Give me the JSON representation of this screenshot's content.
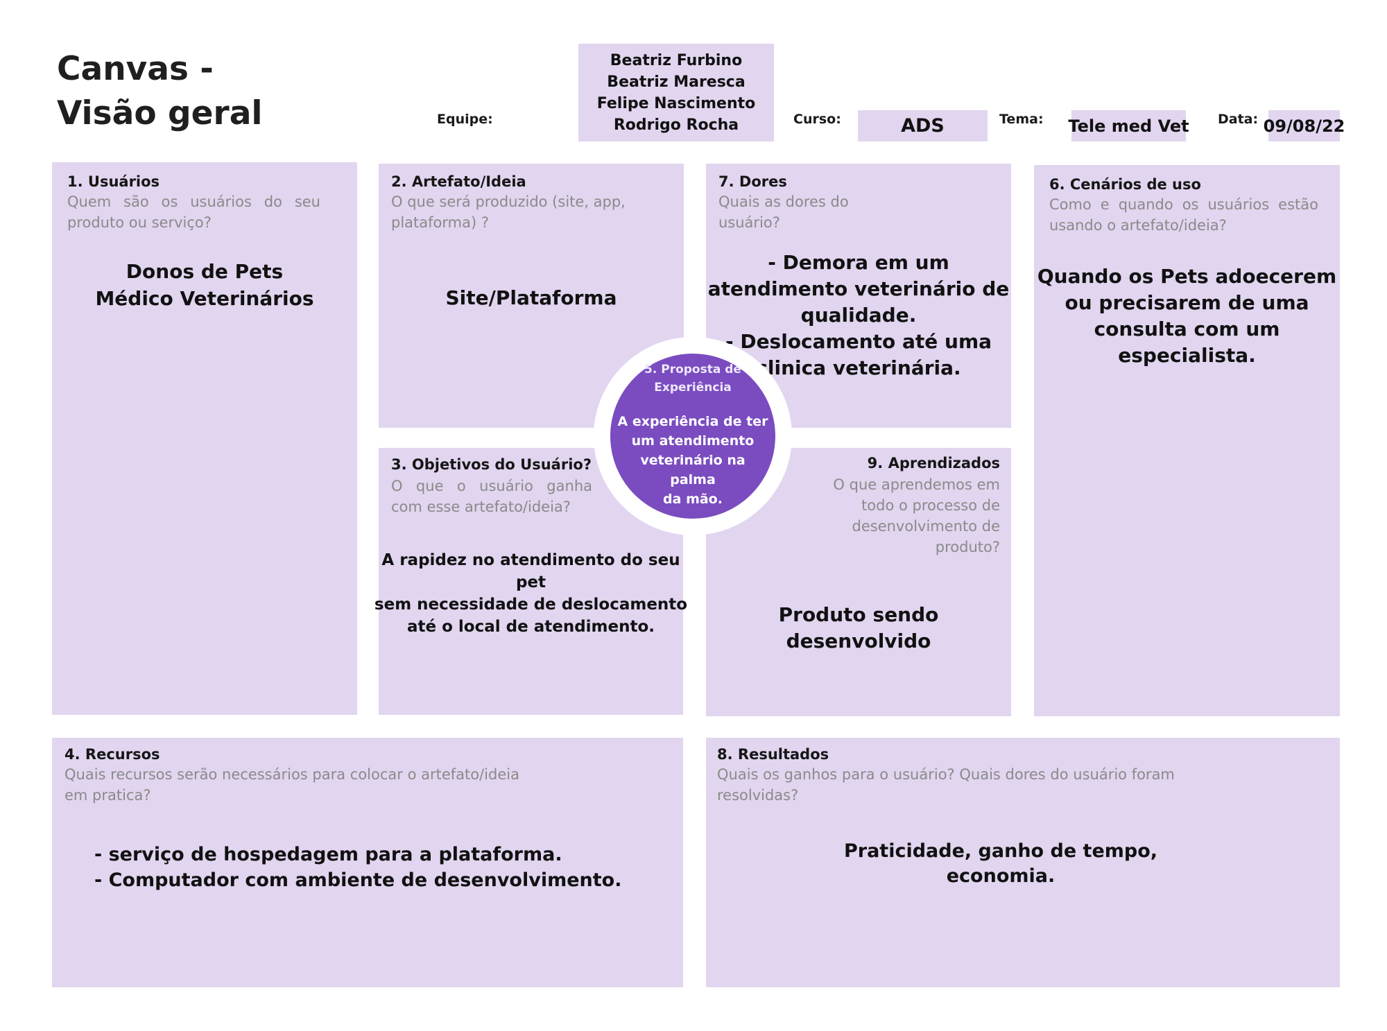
{
  "header": {
    "title_line1": "Canvas -",
    "title_line2": "Visão geral",
    "team_label": "Equipe:",
    "team_members": [
      "Beatriz Furbino",
      "Beatriz Maresca",
      "Felipe Nascimento",
      "Rodrigo Rocha"
    ],
    "course_label": "Curso:",
    "course_value": "ADS",
    "theme_label": "Tema:",
    "theme_value": "Tele med Vet",
    "date_label": "Data:",
    "date_value": "09/08/22"
  },
  "boxes": {
    "usuarios": {
      "title": "1. Usuários",
      "question": "Quem são os usuários do seu produto ou serviço?",
      "answer": [
        "Donos de Pets",
        "Médico Veterinários"
      ]
    },
    "artefato": {
      "title": "2. Artefato/Ideia",
      "question": "O que será produzido (site, app, plataforma) ?",
      "answer": [
        "Site/Plataforma"
      ]
    },
    "dores": {
      "title": "7. Dores",
      "question": "Quais as dores do usuário?",
      "answer": [
        "- Demora em um",
        "atendimento veterinário de",
        "qualidade.",
        "- Deslocamento até uma",
        "clinica veterinária."
      ]
    },
    "cenarios": {
      "title": "6. Cenários de uso",
      "question": "Como e quando os usuários estão usando o artefato/ideia?",
      "answer": [
        "Quando os Pets adoecerem",
        "ou precisarem de uma",
        "consulta com um",
        "especialista."
      ]
    },
    "objetivos": {
      "title": "3. Objetivos do Usuário?",
      "question": "O que o usuário ganha com esse artefato/ideia?",
      "answer": [
        "A rapidez no atendimento do seu pet",
        "sem necessidade de deslocamento",
        "até o local de atendimento."
      ]
    },
    "aprendizados": {
      "title": "9. Aprendizados",
      "question": [
        "O que aprendemos em",
        "todo o processo de",
        "desenvolvimento de",
        "produto?"
      ],
      "answer": [
        "Produto sendo desenvolvido"
      ]
    },
    "recursos": {
      "title": "4. Recursos",
      "question": [
        "Quais recursos serão necessários para colocar o artefato/ideia",
        "em pratica?"
      ],
      "answer": [
        "- serviço de hospedagem para a plataforma.",
        "- Computador com ambiente de desenvolvimento."
      ]
    },
    "resultados": {
      "title": "8. Resultados",
      "question": [
        "Quais os ganhos para o usuário? Quais dores do usuário foram",
        "resolvidas?"
      ],
      "answer": [
        "Praticidade, ganho de tempo,",
        "economia."
      ]
    },
    "proposta": {
      "title": [
        "5. Proposta de",
        "Experiência"
      ],
      "answer": [
        "A experiência de ter",
        "um atendimento",
        "veterinário na palma",
        "da mão."
      ]
    }
  },
  "colors": {
    "box_fill": "#e1d5ef",
    "circle_fill": "#7a4cc0",
    "question_text": "#8a8a8a"
  }
}
